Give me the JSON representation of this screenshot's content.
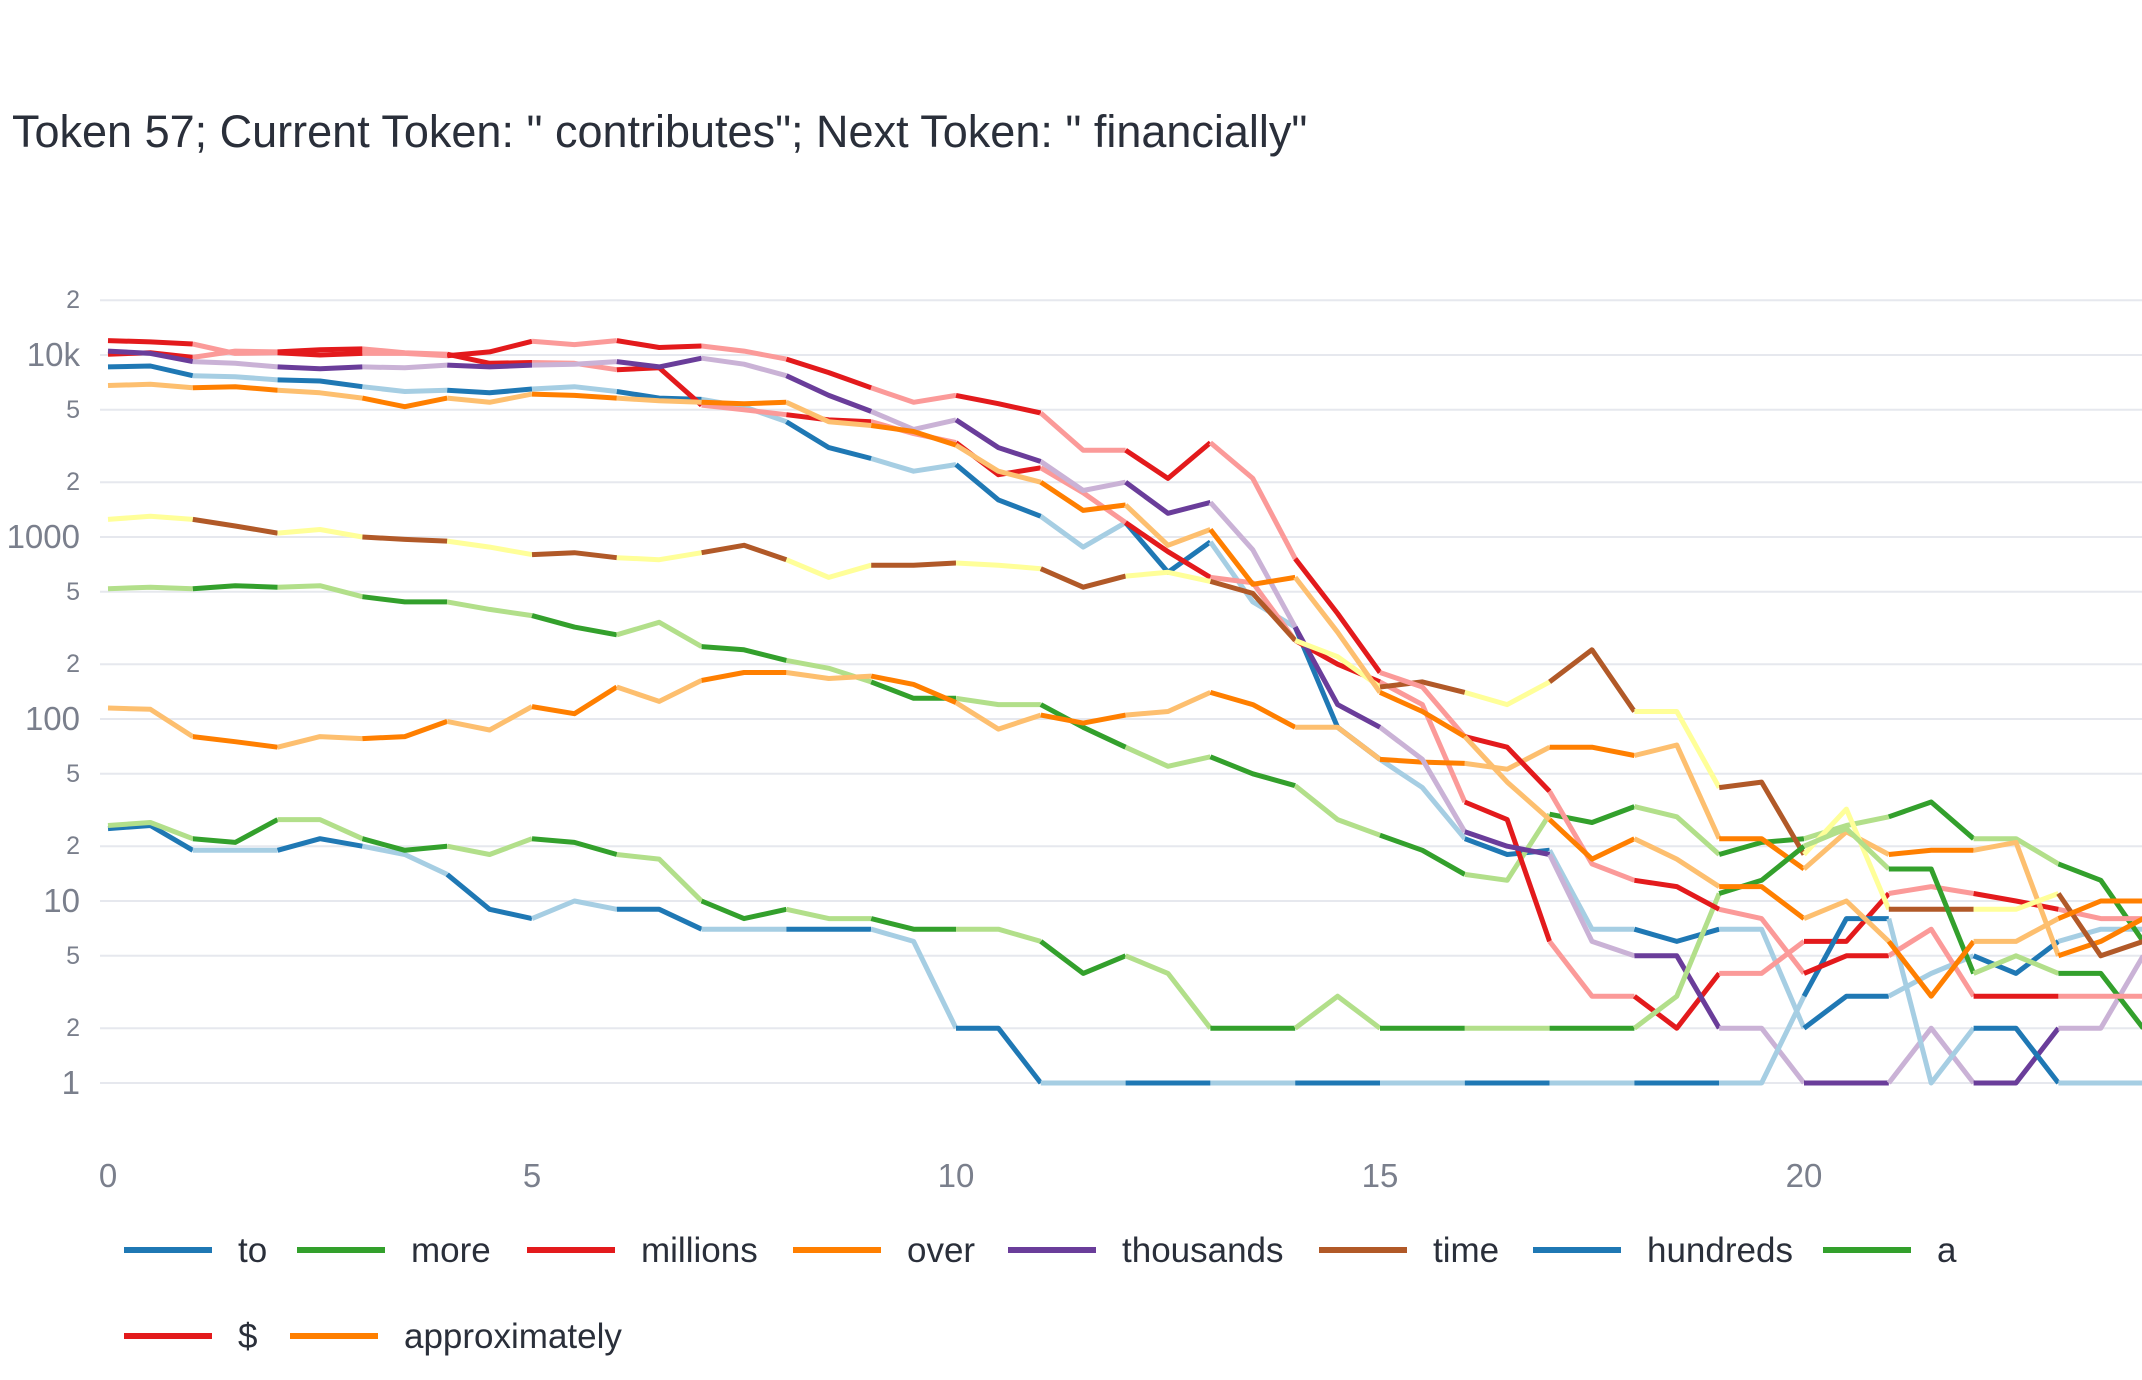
{
  "chart_data": {
    "type": "line",
    "title": "Token 57; Current Token: \" contributes\"; Next Token: \" financially\"",
    "xlabel": "",
    "ylabel": "",
    "y_scale": "log",
    "ylim": [
      0.5,
      30000
    ],
    "xlim": [
      0,
      24
    ],
    "grid": true,
    "legend_position": "bottom",
    "x_ticks": [
      "0",
      "5",
      "10",
      "15",
      "20"
    ],
    "y_ticks": [
      "1",
      "2",
      "5",
      "10",
      "2",
      "5",
      "100",
      "2",
      "5",
      "1000",
      "2",
      "5",
      "10k",
      "2"
    ],
    "x": [
      0,
      0.5,
      1,
      1.5,
      2,
      2.5,
      3,
      3.5,
      4,
      4.5,
      5,
      5.5,
      6,
      6.5,
      7,
      7.5,
      8,
      8.5,
      9,
      9.5,
      10,
      10.5,
      11,
      11.5,
      12,
      12.5,
      13,
      13.5,
      14,
      14.5,
      15,
      15.5,
      16,
      16.5,
      17,
      17.5,
      18,
      18.5,
      19,
      19.5,
      20,
      20.5,
      21,
      21.5,
      22,
      22.5,
      23,
      23.5,
      24
    ],
    "series": [
      {
        "name": "to",
        "color_dark": "#1f78b4",
        "color_light": "#a6cee3",
        "values": [
          8600,
          8700,
          7700,
          7600,
          7300,
          7200,
          6700,
          6300,
          6400,
          6200,
          6500,
          6700,
          6300,
          5800,
          5700,
          5200,
          4300,
          3100,
          2700,
          2300,
          2500,
          1600,
          1300,
          880,
          1200,
          640,
          940,
          440,
          320,
          90,
          60,
          42,
          22,
          18,
          19,
          7,
          7,
          6,
          7,
          7,
          2,
          3,
          3,
          4,
          5,
          4,
          6,
          7,
          7
        ]
      },
      {
        "name": "more",
        "color_dark": "#33a02c",
        "color_light": "#b2df8a",
        "values": [
          520,
          530,
          520,
          540,
          530,
          540,
          470,
          440,
          440,
          400,
          370,
          320,
          290,
          340,
          250,
          240,
          210,
          190,
          160,
          130,
          130,
          120,
          120,
          90,
          70,
          55,
          62,
          50,
          43,
          28,
          23,
          19,
          14,
          13,
          30,
          27,
          33,
          29,
          18,
          21,
          22,
          26,
          29,
          35,
          22,
          22,
          16,
          13,
          6
        ]
      },
      {
        "name": "millions",
        "color_dark": "#e31a1c",
        "color_light": "#fb9a99",
        "values": [
          10100,
          10300,
          9700,
          10500,
          10400,
          10700,
          10800,
          10300,
          10100,
          9000,
          9100,
          9000,
          8300,
          8500,
          5300,
          5000,
          4700,
          4400,
          4300,
          3700,
          3300,
          2200,
          2400,
          1750,
          1200,
          830,
          600,
          560,
          270,
          200,
          160,
          120,
          35,
          28,
          6,
          3,
          3,
          2,
          4,
          4,
          6,
          6,
          11,
          12,
          11,
          10,
          9,
          8,
          8
        ]
      },
      {
        "name": "over",
        "color_dark": "#ff7f00",
        "color_light": "#fdbf6f",
        "values": [
          115,
          113,
          80,
          75,
          70,
          80,
          78,
          80,
          97,
          87,
          117,
          107,
          150,
          125,
          163,
          180,
          180,
          167,
          172,
          155,
          123,
          88,
          105,
          95,
          105,
          110,
          140,
          120,
          90,
          90,
          60,
          58,
          57,
          53,
          70,
          70,
          63,
          72,
          22,
          22,
          15,
          24,
          18,
          19,
          19,
          21,
          5,
          6,
          8
        ]
      },
      {
        "name": "thousands",
        "color_dark": "#6a3d9a",
        "color_light": "#cab2d6",
        "values": [
          10500,
          10200,
          9200,
          9000,
          8600,
          8400,
          8600,
          8500,
          8800,
          8600,
          8800,
          8900,
          9200,
          8600,
          9600,
          8900,
          7700,
          6000,
          4900,
          3900,
          4400,
          3100,
          2600,
          1800,
          2000,
          1350,
          1550,
          850,
          320,
          120,
          90,
          60,
          24,
          20,
          18,
          6,
          5,
          5,
          2,
          2,
          1,
          1,
          1,
          2,
          1,
          1,
          2,
          2,
          5
        ]
      },
      {
        "name": "time",
        "color_dark": "#b15928",
        "color_light": "#ffff99",
        "values": [
          1250,
          1300,
          1250,
          1150,
          1050,
          1100,
          1000,
          970,
          950,
          880,
          800,
          820,
          770,
          750,
          820,
          900,
          750,
          600,
          700,
          700,
          720,
          700,
          670,
          530,
          610,
          640,
          570,
          490,
          270,
          220,
          150,
          160,
          140,
          120,
          160,
          240,
          110,
          110,
          42,
          45,
          18,
          32,
          9,
          9,
          9,
          9,
          11,
          5,
          6
        ]
      },
      {
        "name": "hundreds",
        "color_dark": "#1f78b4",
        "color_light": "#a6cee3",
        "values": [
          25,
          26,
          19,
          19,
          19,
          22,
          20,
          18,
          14,
          9,
          8,
          10,
          9,
          9,
          7,
          7,
          7,
          7,
          7,
          6,
          2,
          2,
          1,
          1,
          1,
          1,
          1,
          1,
          1,
          1,
          1,
          1,
          1,
          1,
          1,
          1,
          1,
          1,
          1,
          1,
          3,
          8,
          8,
          1,
          2,
          2,
          1,
          1,
          1
        ]
      },
      {
        "name": "a",
        "color_dark": "#33a02c",
        "color_light": "#b2df8a",
        "values": [
          26,
          27,
          22,
          21,
          28,
          28,
          22,
          19,
          20,
          18,
          22,
          21,
          18,
          17,
          10,
          8,
          9,
          8,
          8,
          7,
          7,
          7,
          6,
          4,
          5,
          4,
          2,
          2,
          2,
          3,
          2,
          2,
          2,
          2,
          2,
          2,
          2,
          3,
          11,
          13,
          20,
          25,
          15,
          15,
          4,
          5,
          4,
          4,
          2
        ]
      },
      {
        "name": "$",
        "color_dark": "#e31a1c",
        "color_light": "#fb9a99",
        "values": [
          12000,
          11800,
          11500,
          10200,
          10300,
          10000,
          10200,
          10200,
          9900,
          10400,
          11900,
          11400,
          12000,
          11000,
          11200,
          10500,
          9500,
          8000,
          6600,
          5500,
          6000,
          5400,
          4800,
          3000,
          3000,
          2100,
          3300,
          2100,
          760,
          380,
          180,
          150,
          80,
          70,
          40,
          16,
          13,
          12,
          9,
          8,
          4,
          5,
          5,
          7,
          3,
          3,
          3,
          3,
          3
        ]
      },
      {
        "name": "approximately",
        "color_dark": "#ff7f00",
        "color_light": "#fdbf6f",
        "values": [
          6800,
          6900,
          6600,
          6700,
          6400,
          6200,
          5800,
          5200,
          5800,
          5500,
          6100,
          6000,
          5800,
          5600,
          5500,
          5400,
          5500,
          4300,
          4100,
          3800,
          3200,
          2300,
          2000,
          1400,
          1500,
          900,
          1100,
          550,
          600,
          300,
          140,
          110,
          80,
          45,
          28,
          17,
          22,
          17,
          12,
          12,
          8,
          10,
          6,
          3,
          6,
          6,
          8,
          10,
          10
        ]
      }
    ]
  }
}
